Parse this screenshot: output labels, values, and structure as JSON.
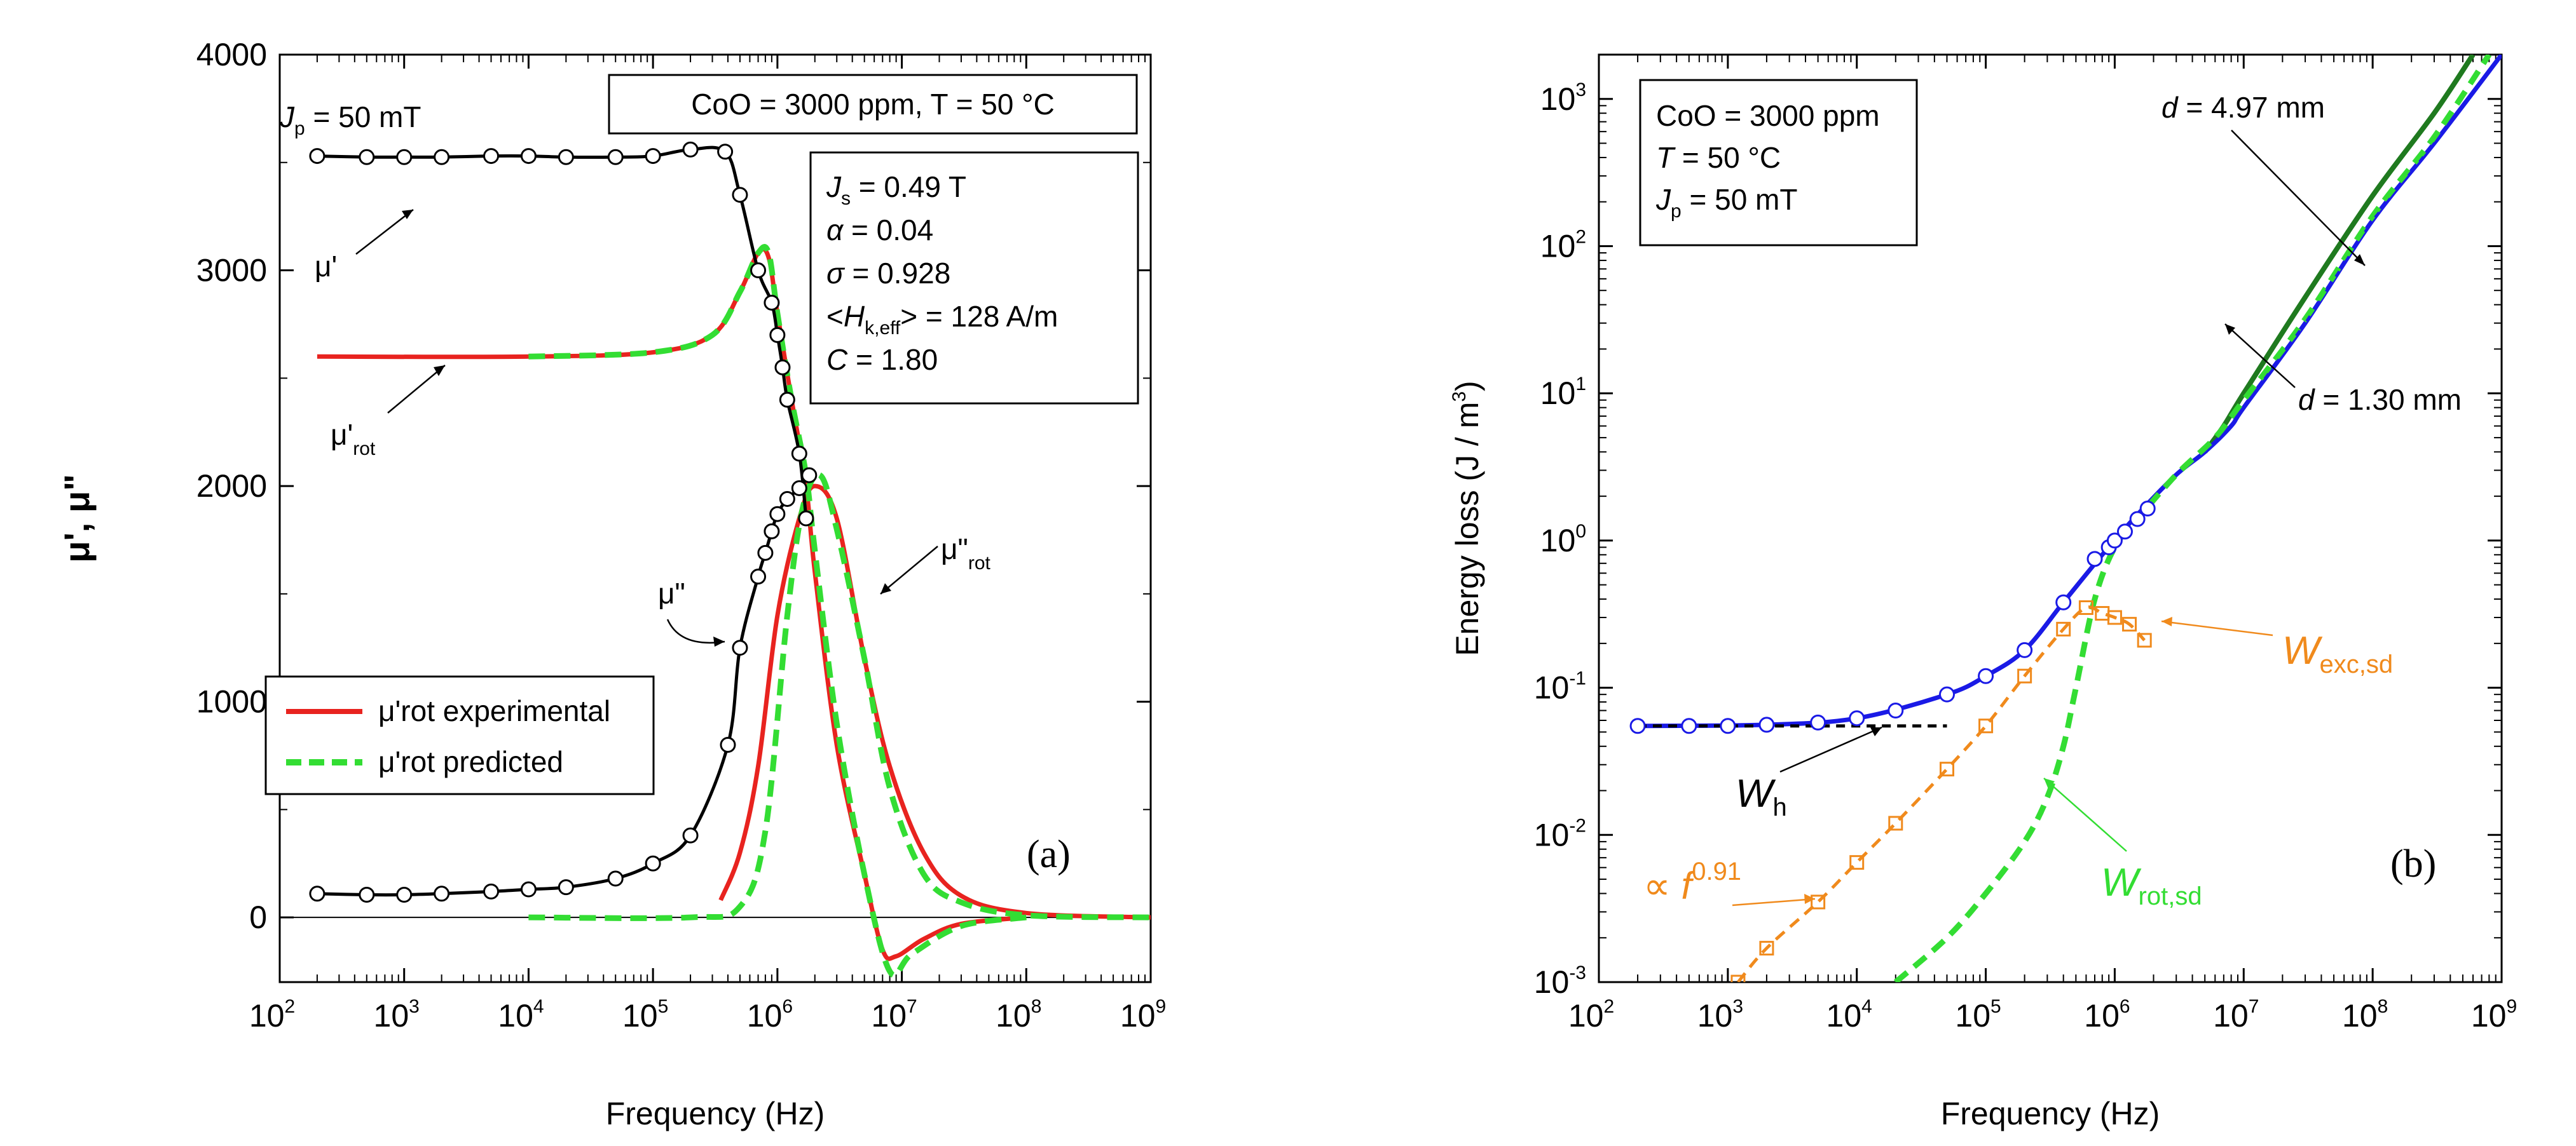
{
  "figure": {
    "panel_a_label": "(a)",
    "panel_b_label": "(b)"
  },
  "panel_a": {
    "ylabel": "μ', μ\"",
    "xlabel": "Frequency (Hz)",
    "condition_box": "CoO = 3000 ppm, T = 50 °C",
    "jp_label": "J_p = 50 mT",
    "params": [
      "J_s = 0.49 T",
      "α = 0.04",
      "σ = 0.928",
      "<H_k,eff> = 128 A/m",
      "C = 1.80"
    ],
    "labels": {
      "mu_prime": "μ'",
      "mu_prime_rot": "μ'rot",
      "mu_dprime": "μ\"",
      "mu_dprime_rot": "μ\"rot"
    },
    "legend": [
      "μ'rot experimental",
      "μ'rot predicted"
    ],
    "colors": {
      "experimental": "#e8231f",
      "predicted": "#33dd33",
      "measured": "#000000"
    }
  },
  "panel_b": {
    "ylabel": "Energy loss (J / m³)",
    "xlabel": "Frequency (Hz)",
    "info_box": [
      "CoO = 3000 ppm",
      "T = 50 °C",
      "J_p = 50 mT"
    ],
    "annotations": {
      "d_thick": "d = 4.97 mm",
      "d_thin": "d = 1.30 mm",
      "W_exc": "W_exc,sd",
      "W_h": "W_h",
      "W_rot": "W_rot,sd",
      "power_law": "∝ f^0.91"
    },
    "colors": {
      "total_thin": "#1a1ae6",
      "total_thick": "#1f7a1f",
      "rot": "#33dd33",
      "exc": "#f08a1c",
      "hyst": "#000000"
    }
  },
  "chart_data": [
    {
      "type": "line",
      "title": "",
      "xlabel": "Frequency (Hz)",
      "ylabel": "μ', μ\"",
      "xscale": "log",
      "xlim": [
        100,
        1000000000
      ],
      "ylim": [
        -300,
        4000
      ],
      "x_ticks": [
        100,
        1000,
        10000,
        100000,
        1000000,
        10000000,
        100000000,
        1000000000
      ],
      "y_ticks": [
        0,
        1000,
        2000,
        3000,
        4000
      ],
      "series": [
        {
          "name": "μ' measured",
          "style": "black line with circles",
          "points": [
            [
              200,
              3530
            ],
            [
              500,
              3525
            ],
            [
              1000,
              3525
            ],
            [
              2000,
              3525
            ],
            [
              5000,
              3530
            ],
            [
              10000,
              3530
            ],
            [
              20000,
              3525
            ],
            [
              50000,
              3525
            ],
            [
              100000,
              3530
            ],
            [
              200000,
              3560
            ],
            [
              380000,
              3550
            ],
            [
              500000,
              3350
            ],
            [
              700000,
              3000
            ],
            [
              900000,
              2850
            ],
            [
              1000000,
              2700
            ],
            [
              1100000,
              2550
            ],
            [
              1200000,
              2400
            ],
            [
              1500000,
              2150
            ],
            [
              1700000,
              1850
            ]
          ]
        },
        {
          "name": "μ\" measured",
          "style": "black line with circles",
          "points": [
            [
              200,
              110
            ],
            [
              500,
              105
            ],
            [
              1000,
              105
            ],
            [
              2000,
              110
            ],
            [
              5000,
              120
            ],
            [
              10000,
              130
            ],
            [
              20000,
              140
            ],
            [
              50000,
              180
            ],
            [
              100000,
              250
            ],
            [
              200000,
              380
            ],
            [
              400000,
              800
            ],
            [
              500000,
              1250
            ],
            [
              700000,
              1580
            ],
            [
              800000,
              1690
            ],
            [
              900000,
              1790
            ],
            [
              1000000,
              1870
            ],
            [
              1200000,
              1940
            ],
            [
              1500000,
              1990
            ],
            [
              1800000,
              2050
            ]
          ]
        },
        {
          "name": "μ'rot experimental",
          "style": "red solid",
          "points": [
            [
              200,
              2600
            ],
            [
              10000,
              2600
            ],
            [
              100000,
              2620
            ],
            [
              300000,
              2700
            ],
            [
              500000,
              2900
            ],
            [
              700000,
              3080
            ],
            [
              850000,
              3060
            ],
            [
              1000000,
              2800
            ],
            [
              1300000,
              2400
            ],
            [
              1700000,
              2000
            ],
            [
              2000000,
              1600
            ],
            [
              3000000,
              800
            ],
            [
              5000000,
              200
            ],
            [
              7000000,
              -150
            ],
            [
              9000000,
              -180
            ],
            [
              15000000,
              -100
            ],
            [
              30000000,
              -30
            ],
            [
              100000000,
              0
            ]
          ]
        },
        {
          "name": "μ'rot predicted",
          "style": "green dashed",
          "points": [
            [
              10000,
              2600
            ],
            [
              100000,
              2620
            ],
            [
              300000,
              2700
            ],
            [
              500000,
              2900
            ],
            [
              700000,
              3080
            ],
            [
              850000,
              3080
            ],
            [
              1000000,
              2800
            ],
            [
              1300000,
              2400
            ],
            [
              1700000,
              2050
            ],
            [
              2000000,
              1700
            ],
            [
              3000000,
              900
            ],
            [
              5000000,
              200
            ],
            [
              8000000,
              -250
            ],
            [
              12000000,
              -170
            ],
            [
              30000000,
              -40
            ],
            [
              100000000,
              0
            ]
          ]
        },
        {
          "name": "μ\"rot experimental",
          "style": "red solid",
          "points": [
            [
              350000,
              80
            ],
            [
              500000,
              300
            ],
            [
              700000,
              700
            ],
            [
              1000000,
              1400
            ],
            [
              1500000,
              1850
            ],
            [
              2000000,
              2000
            ],
            [
              3000000,
              1850
            ],
            [
              5000000,
              1200
            ],
            [
              8000000,
              700
            ],
            [
              15000000,
              300
            ],
            [
              30000000,
              100
            ],
            [
              100000000,
              20
            ],
            [
              1000000000,
              0
            ]
          ]
        },
        {
          "name": "μ\"rot predicted",
          "style": "green dashed",
          "points": [
            [
              10000,
              0
            ],
            [
              200000,
              0
            ],
            [
              500000,
              50
            ],
            [
              800000,
              400
            ],
            [
              1200000,
              1400
            ],
            [
              1600000,
              1900
            ],
            [
              2200000,
              2050
            ],
            [
              3000000,
              1800
            ],
            [
              5000000,
              1200
            ],
            [
              8000000,
              600
            ],
            [
              15000000,
              200
            ],
            [
              30000000,
              70
            ],
            [
              100000000,
              10
            ],
            [
              1000000000,
              0
            ]
          ]
        }
      ]
    },
    {
      "type": "line",
      "title": "",
      "xlabel": "Frequency (Hz)",
      "ylabel": "Energy loss (J / m³)",
      "xscale": "log",
      "yscale": "log",
      "xlim": [
        100,
        1000000000
      ],
      "ylim": [
        0.001,
        2000
      ],
      "x_ticks": [
        100,
        1000,
        10000,
        100000,
        1000000,
        10000000,
        100000000,
        1000000000
      ],
      "y_ticks": [
        0.001,
        0.01,
        0.1,
        1,
        10,
        100,
        1000
      ],
      "series": [
        {
          "name": "measured total loss",
          "style": "white circles",
          "points": [
            [
              200,
              0.055
            ],
            [
              500,
              0.055
            ],
            [
              1000,
              0.055
            ],
            [
              2000,
              0.056
            ],
            [
              5000,
              0.058
            ],
            [
              10000,
              0.062
            ],
            [
              20000,
              0.07
            ],
            [
              50000,
              0.09
            ],
            [
              100000,
              0.12
            ],
            [
              200000,
              0.18
            ],
            [
              400000,
              0.38
            ],
            [
              700000,
              0.75
            ],
            [
              900000,
              0.9
            ],
            [
              1000000,
              1.0
            ],
            [
              1200000,
              1.15
            ],
            [
              1500000,
              1.4
            ],
            [
              1800000,
              1.65
            ]
          ]
        },
        {
          "name": "total loss d = 1.30 mm",
          "style": "blue solid",
          "points": [
            [
              200,
              0.055
            ],
            [
              2000,
              0.056
            ],
            [
              10000,
              0.062
            ],
            [
              50000,
              0.09
            ],
            [
              100000,
              0.12
            ],
            [
              200000,
              0.18
            ],
            [
              400000,
              0.38
            ],
            [
              800000,
              0.8
            ],
            [
              1500000,
              1.5
            ],
            [
              3000000,
              2.8
            ],
            [
              5000000,
              4
            ],
            [
              8000000,
              6
            ],
            [
              10000000,
              8
            ],
            [
              30000000,
              30
            ],
            [
              100000000,
              150
            ],
            [
              300000000,
              500
            ],
            [
              1000000000,
              2000
            ]
          ]
        },
        {
          "name": "total loss d = 4.97 mm",
          "style": "dark green solid",
          "points": [
            [
              5000000,
              4
            ],
            [
              7000000,
              6
            ],
            [
              10000000,
              10
            ],
            [
              30000000,
              45
            ],
            [
              100000000,
              220
            ],
            [
              300000000,
              800
            ],
            [
              600000000,
              2000
            ]
          ]
        },
        {
          "name": "W_rot,sd",
          "style": "green dashed",
          "points": [
            [
              20000,
              0.001
            ],
            [
              50000,
              0.002
            ],
            [
              100000,
              0.004
            ],
            [
              200000,
              0.009
            ],
            [
              300000,
              0.018
            ],
            [
              400000,
              0.04
            ],
            [
              500000,
              0.1
            ],
            [
              700000,
              0.4
            ],
            [
              1000000,
              0.9
            ],
            [
              1500000,
              1.4
            ],
            [
              3000000,
              2.8
            ],
            [
              6000000,
              5
            ],
            [
              10000000,
              9
            ],
            [
              30000000,
              32
            ],
            [
              100000000,
              160
            ],
            [
              300000000,
              550
            ],
            [
              800000000,
              2000
            ]
          ]
        },
        {
          "name": "W_exc,sd",
          "style": "orange dashed with squares",
          "points": [
            [
              1200,
              0.001
            ],
            [
              2000,
              0.0017
            ],
            [
              5000,
              0.0035
            ],
            [
              10000,
              0.0065
            ],
            [
              20000,
              0.012
            ],
            [
              50000,
              0.028
            ],
            [
              100000,
              0.055
            ],
            [
              200000,
              0.12
            ],
            [
              400000,
              0.25
            ],
            [
              600000,
              0.35
            ],
            [
              800000,
              0.32
            ],
            [
              1000000,
              0.3
            ],
            [
              1300000,
              0.27
            ],
            [
              1700000,
              0.21
            ]
          ]
        },
        {
          "name": "W_h",
          "style": "black dashed",
          "points": [
            [
              200,
              0.055
            ],
            [
              50000,
              0.055
            ]
          ]
        }
      ]
    }
  ]
}
